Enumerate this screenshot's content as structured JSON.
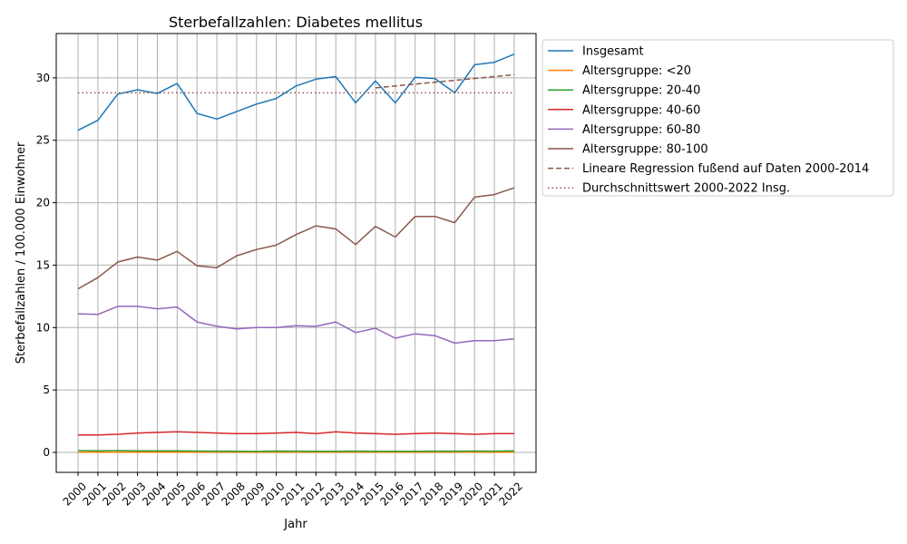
{
  "chart_data": {
    "type": "line",
    "title": "Sterbefallzahlen: Diabetes mellitus",
    "xlabel": "Jahr",
    "ylabel": "Sterbefallzahlen / 100.000 Einwohner",
    "xlim": [
      1998.9,
      2023.1
    ],
    "ylim": [
      -1.6,
      33.55
    ],
    "yticks": [
      0,
      5,
      10,
      15,
      20,
      25,
      30
    ],
    "grid": true,
    "legend_position": "outside-top-right",
    "x": [
      2000,
      2001,
      2002,
      2003,
      2004,
      2005,
      2006,
      2007,
      2008,
      2009,
      2010,
      2011,
      2012,
      2013,
      2014,
      2015,
      2016,
      2017,
      2018,
      2019,
      2020,
      2021,
      2022
    ],
    "series": [
      {
        "name": "Insgesamt",
        "color": "#1f77b4",
        "style": "solid",
        "values": [
          25.8,
          26.6,
          28.7,
          29.05,
          28.75,
          29.55,
          27.15,
          26.7,
          27.3,
          27.9,
          28.35,
          29.35,
          29.9,
          30.1,
          28.0,
          29.75,
          28.0,
          30.05,
          29.95,
          28.8,
          31.05,
          31.25,
          31.9
        ]
      },
      {
        "name": "Altersgruppe: <20",
        "color": "#ff7f0e",
        "style": "solid",
        "values": [
          0.02,
          0.02,
          0.02,
          0.02,
          0.02,
          0.02,
          0.02,
          0.02,
          0.02,
          0.02,
          0.02,
          0.02,
          0.02,
          0.02,
          0.02,
          0.02,
          0.02,
          0.02,
          0.02,
          0.02,
          0.02,
          0.02,
          0.02
        ]
      },
      {
        "name": "Altersgruppe: 20-40",
        "color": "#2ca02c",
        "style": "solid",
        "values": [
          0.15,
          0.12,
          0.15,
          0.12,
          0.13,
          0.12,
          0.11,
          0.1,
          0.09,
          0.08,
          0.11,
          0.1,
          0.09,
          0.09,
          0.1,
          0.09,
          0.09,
          0.09,
          0.1,
          0.1,
          0.11,
          0.1,
          0.12
        ]
      },
      {
        "name": "Altersgruppe: 40-60",
        "color": "#d62728",
        "style": "solid",
        "values": [
          1.4,
          1.4,
          1.45,
          1.55,
          1.6,
          1.65,
          1.6,
          1.55,
          1.5,
          1.5,
          1.55,
          1.6,
          1.5,
          1.65,
          1.55,
          1.5,
          1.45,
          1.5,
          1.55,
          1.5,
          1.45,
          1.5,
          1.5
        ]
      },
      {
        "name": "Altersgruppe: 60-80",
        "color": "#9467bd",
        "style": "solid",
        "values": [
          11.1,
          11.05,
          11.7,
          11.7,
          11.5,
          11.65,
          10.45,
          10.1,
          9.9,
          10.0,
          10.0,
          10.15,
          10.1,
          10.45,
          9.6,
          9.95,
          9.15,
          9.5,
          9.35,
          8.75,
          8.95,
          8.95,
          9.1
        ]
      },
      {
        "name": "Altersgruppe: 80-100",
        "color": "#8c564b",
        "style": "solid",
        "values": [
          13.1,
          14.0,
          15.25,
          15.65,
          15.4,
          16.1,
          14.95,
          14.8,
          15.75,
          16.25,
          16.6,
          17.45,
          18.15,
          17.9,
          16.65,
          18.1,
          17.25,
          18.9,
          18.9,
          18.4,
          20.45,
          20.65,
          21.2
        ]
      },
      {
        "name": "Lineare Regression fußend auf Daten 2000-2014",
        "color": "#8c564b",
        "style": "dashed",
        "x": [
          2015,
          2022
        ],
        "values": [
          29.2,
          30.25
        ]
      },
      {
        "name": "Durchschnittswert 2000-2022 Insg.",
        "color": "#8c564b",
        "style": "dotted",
        "x": [
          2000,
          2022
        ],
        "values": [
          28.8,
          28.8
        ]
      }
    ]
  }
}
